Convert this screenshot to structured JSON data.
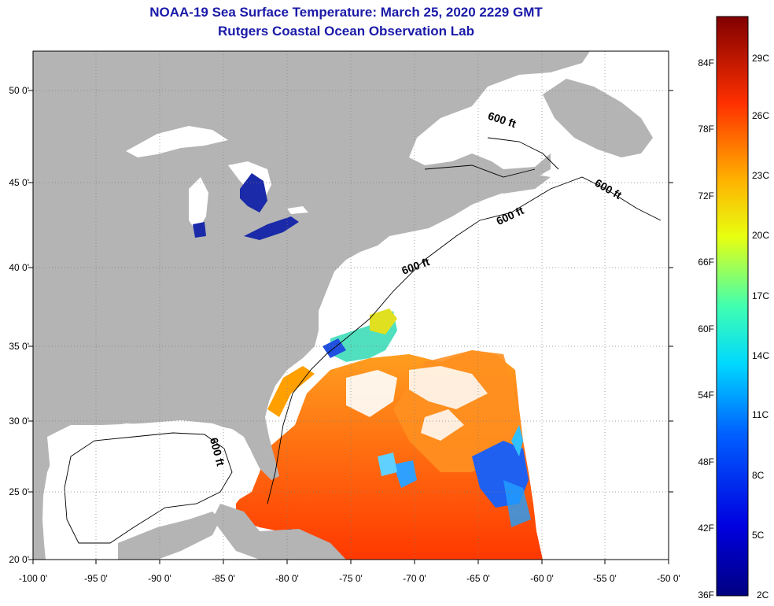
{
  "title": "NOAA-19 Sea Surface Temperature:  March 25, 2020 2229 GMT",
  "subtitle": "Rutgers Coastal Ocean Observation Lab",
  "lat_labels": [
    "50 0'",
    "45 0'",
    "40 0'",
    "35 0'",
    "30 0'",
    "25 0'",
    "20 0'"
  ],
  "lon_labels": [
    "-100 0'",
    "-95 0'",
    "-90 0'",
    "-85 0'",
    "-80 0'",
    "-75 0'",
    "-70 0'",
    "-65 0'",
    "-60 0'",
    "-55 0'",
    "-50 0'"
  ],
  "colorbar": {
    "fahrenheit": [
      "84F",
      "78F",
      "72F",
      "66F",
      "60F",
      "54F",
      "48F",
      "42F",
      "36F"
    ],
    "celsius": [
      "29C",
      "26C",
      "23C",
      "20C",
      "17C",
      "14C",
      "11C",
      "8C",
      "5C",
      "2C"
    ]
  },
  "isobath_labels": [
    "600 ft",
    "600 ft",
    "600 ft",
    "600 ft",
    "600 ft"
  ],
  "colors": {
    "land": "#b4b4b4",
    "title": "#1a1aa8",
    "ocean_nodata": "#ffffff"
  }
}
